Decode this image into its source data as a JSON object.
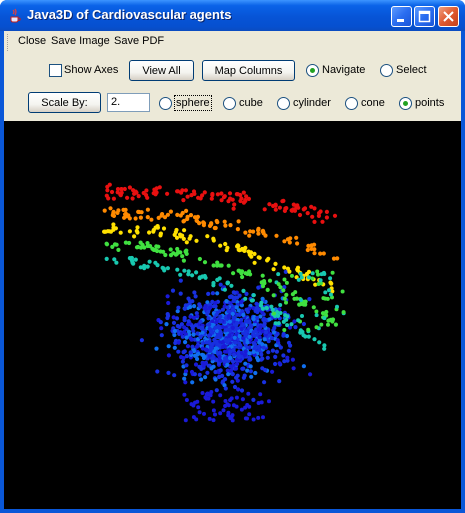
{
  "window": {
    "title": "Java3D of Cardiovascular agents",
    "icon": "java-cup-icon",
    "controls": [
      "minimize-icon",
      "maximize-icon",
      "close-icon"
    ],
    "title_color": "#0754d6"
  },
  "menu": {
    "items": [
      "Close",
      "Save Image",
      "Save PDF"
    ]
  },
  "toolbar": {
    "show_axes_label": "Show Axes",
    "show_axes_checked": false,
    "view_all_label": "View All",
    "map_columns_label": "Map Columns",
    "mode_options": [
      "Navigate",
      "Select"
    ],
    "mode_selected": "Navigate"
  },
  "scale": {
    "button_label": "Scale By:",
    "value": "2.",
    "shape_options": [
      "sphere",
      "cube",
      "cylinder",
      "cone",
      "points"
    ],
    "shape_selected": "points"
  },
  "viewport": {
    "background": "#000000",
    "color_scale": [
      "#e81010",
      "#ff8a00",
      "#ffe000",
      "#40e040",
      "#18c8b0",
      "#1070f0",
      "#1830e0",
      "#1a1ad8"
    ]
  }
}
